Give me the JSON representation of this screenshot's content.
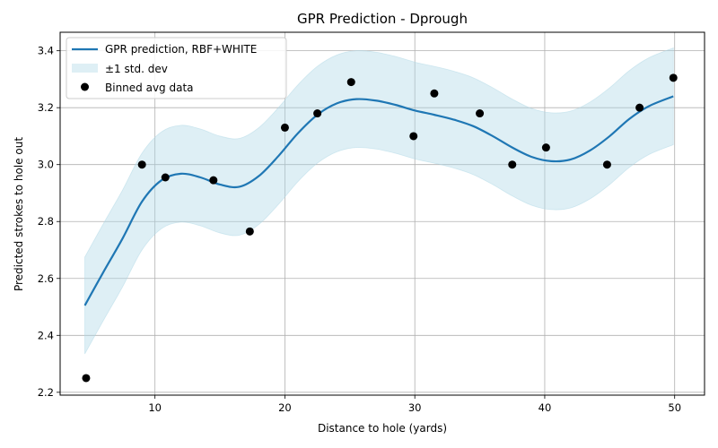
{
  "chart_data": {
    "type": "line",
    "title": "GPR Prediction - Dprough",
    "xlabel": "Distance to hole (yards)",
    "ylabel": "Predicted strokes to hole out",
    "xlim": [
      2.7,
      52.3
    ],
    "ylim": [
      2.19,
      3.465
    ],
    "xticks": [
      10,
      20,
      30,
      40,
      50
    ],
    "yticks": [
      2.2,
      2.4,
      2.6,
      2.8,
      3.0,
      3.2,
      3.4
    ],
    "grid": true,
    "legend_position": "upper-left",
    "colors": {
      "prediction": "#1f77b4",
      "band": "#add8e6",
      "points": "#000000"
    },
    "series": [
      {
        "name": "GPR prediction, RBF+WHITE",
        "kind": "line",
        "x": [
          4.6,
          6.0,
          7.5,
          9.0,
          10.5,
          12.0,
          13.5,
          15.0,
          16.5,
          18.0,
          19.5,
          21.0,
          22.5,
          24.0,
          25.5,
          27.0,
          28.5,
          30.0,
          31.5,
          33.0,
          34.5,
          36.0,
          37.5,
          39.0,
          40.5,
          42.0,
          43.5,
          45.0,
          46.5,
          48.0,
          49.9
        ],
        "y": [
          2.505,
          2.62,
          2.74,
          2.87,
          2.945,
          2.968,
          2.955,
          2.93,
          2.922,
          2.96,
          3.03,
          3.11,
          3.175,
          3.215,
          3.23,
          3.225,
          3.21,
          3.19,
          3.175,
          3.158,
          3.135,
          3.1,
          3.06,
          3.027,
          3.012,
          3.018,
          3.05,
          3.1,
          3.16,
          3.205,
          3.24
        ]
      },
      {
        "name": "±1 std. dev",
        "kind": "band",
        "x": [
          4.6,
          6.0,
          7.5,
          9.0,
          10.5,
          12.0,
          13.5,
          15.0,
          16.5,
          18.0,
          19.5,
          21.0,
          22.5,
          24.0,
          25.5,
          27.0,
          28.5,
          30.0,
          31.5,
          33.0,
          34.5,
          36.0,
          37.5,
          39.0,
          40.5,
          42.0,
          43.5,
          45.0,
          46.5,
          48.0,
          49.9
        ],
        "lower": [
          2.335,
          2.45,
          2.57,
          2.7,
          2.775,
          2.798,
          2.785,
          2.76,
          2.752,
          2.79,
          2.86,
          2.94,
          3.005,
          3.045,
          3.06,
          3.055,
          3.04,
          3.02,
          3.005,
          2.988,
          2.965,
          2.93,
          2.89,
          2.857,
          2.842,
          2.848,
          2.88,
          2.93,
          2.99,
          3.035,
          3.07
        ],
        "upper": [
          2.675,
          2.79,
          2.91,
          3.04,
          3.115,
          3.138,
          3.125,
          3.1,
          3.092,
          3.13,
          3.2,
          3.28,
          3.345,
          3.385,
          3.4,
          3.395,
          3.38,
          3.36,
          3.345,
          3.328,
          3.305,
          3.27,
          3.23,
          3.197,
          3.182,
          3.188,
          3.22,
          3.27,
          3.33,
          3.375,
          3.41
        ]
      },
      {
        "name": "Binned avg data",
        "kind": "scatter",
        "x": [
          4.7,
          9.0,
          10.8,
          14.5,
          17.3,
          20.0,
          22.5,
          25.1,
          29.9,
          31.5,
          35.0,
          37.5,
          40.1,
          44.8,
          47.3,
          49.9
        ],
        "y": [
          2.25,
          3.0,
          2.955,
          2.945,
          2.765,
          3.13,
          3.18,
          3.29,
          3.1,
          3.25,
          3.18,
          3.0,
          3.06,
          3.0,
          3.2,
          3.305
        ]
      }
    ]
  }
}
